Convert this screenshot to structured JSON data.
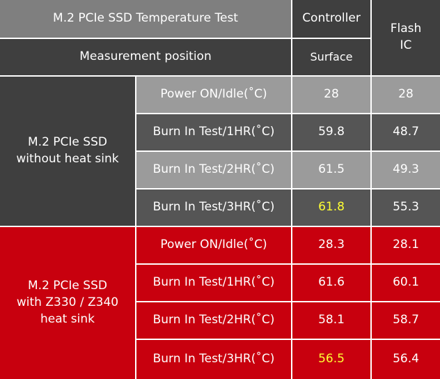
{
  "header": {
    "title": "M.2 PCIe SSD Temperature Test",
    "measurement_position": "Measurement position",
    "controller": "Controller",
    "surface": "Surface",
    "flash_ic": "Flash\nIC"
  },
  "groups": [
    {
      "label": "M.2 PCIe SSD\nwithout heat sink",
      "rows": [
        {
          "test": "Power ON/Idle(˚C)",
          "controller": "28",
          "flash": "28"
        },
        {
          "test": "Burn In Test/1HR(˚C)",
          "controller": "59.8",
          "flash": "48.7"
        },
        {
          "test": "Burn In Test/2HR(˚C)",
          "controller": "61.5",
          "flash": "49.3"
        },
        {
          "test": "Burn In Test/3HR(˚C)",
          "controller": "61.8",
          "flash": "55.3"
        }
      ]
    },
    {
      "label": "M.2 PCIe SSD\nwith Z330 / Z340\nheat sink",
      "rows": [
        {
          "test": "Power ON/Idle(˚C)",
          "controller": "28.3",
          "flash": "28.1"
        },
        {
          "test": "Burn In Test/1HR(˚C)",
          "controller": "61.6",
          "flash": "60.1"
        },
        {
          "test": "Burn In Test/2HR(˚C)",
          "controller": "58.1",
          "flash": "58.7"
        },
        {
          "test": "Burn In Test/3HR(˚C)",
          "controller": "56.5",
          "flash": "56.4"
        }
      ]
    }
  ],
  "colors": {
    "highlight_text": "#ffff33",
    "red_section": "#c8000e",
    "grey_header": "#7f7f7f"
  }
}
